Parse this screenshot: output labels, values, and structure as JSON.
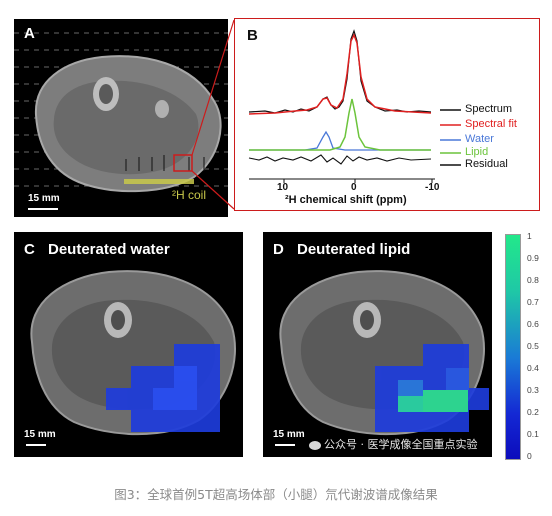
{
  "panel_a": {
    "label": "A",
    "scale_bar": "15 mm",
    "coil_label": "²H coil"
  },
  "panel_b": {
    "label": "B",
    "xlabel": "²H chemical shift (ppm)",
    "xticks": [
      "10",
      "0",
      "-10"
    ],
    "legend": [
      {
        "name": "Spectrum",
        "color": "#111111"
      },
      {
        "name": "Spectral fit",
        "color": "#e02020"
      },
      {
        "name": "Water",
        "color": "#4a78d8"
      },
      {
        "name": "Lipid",
        "color": "#6cc43c"
      },
      {
        "name": "Residual",
        "color": "#111111"
      }
    ]
  },
  "panel_c": {
    "label": "C",
    "title": "Deuterated water",
    "scale_bar": "15 mm"
  },
  "panel_d": {
    "label": "D",
    "title": "Deuterated lipid",
    "scale_bar": "15 mm"
  },
  "colorbar": {
    "ticks": [
      "1",
      "0.9",
      "0.8",
      "0.7",
      "0.6",
      "0.5",
      "0.4",
      "0.3",
      "0.2",
      "0.1",
      "0"
    ],
    "top_color": "#22e88a",
    "bottom_color": "#1010cc"
  },
  "watermark": "公众号 · 医学成像全国重点实验",
  "caption": "图3：全球首例5T超高场体部（小腿）氘代谢波谱成像结果",
  "colors": {
    "frame_red": "#cc1c1c",
    "background": "#000000"
  }
}
